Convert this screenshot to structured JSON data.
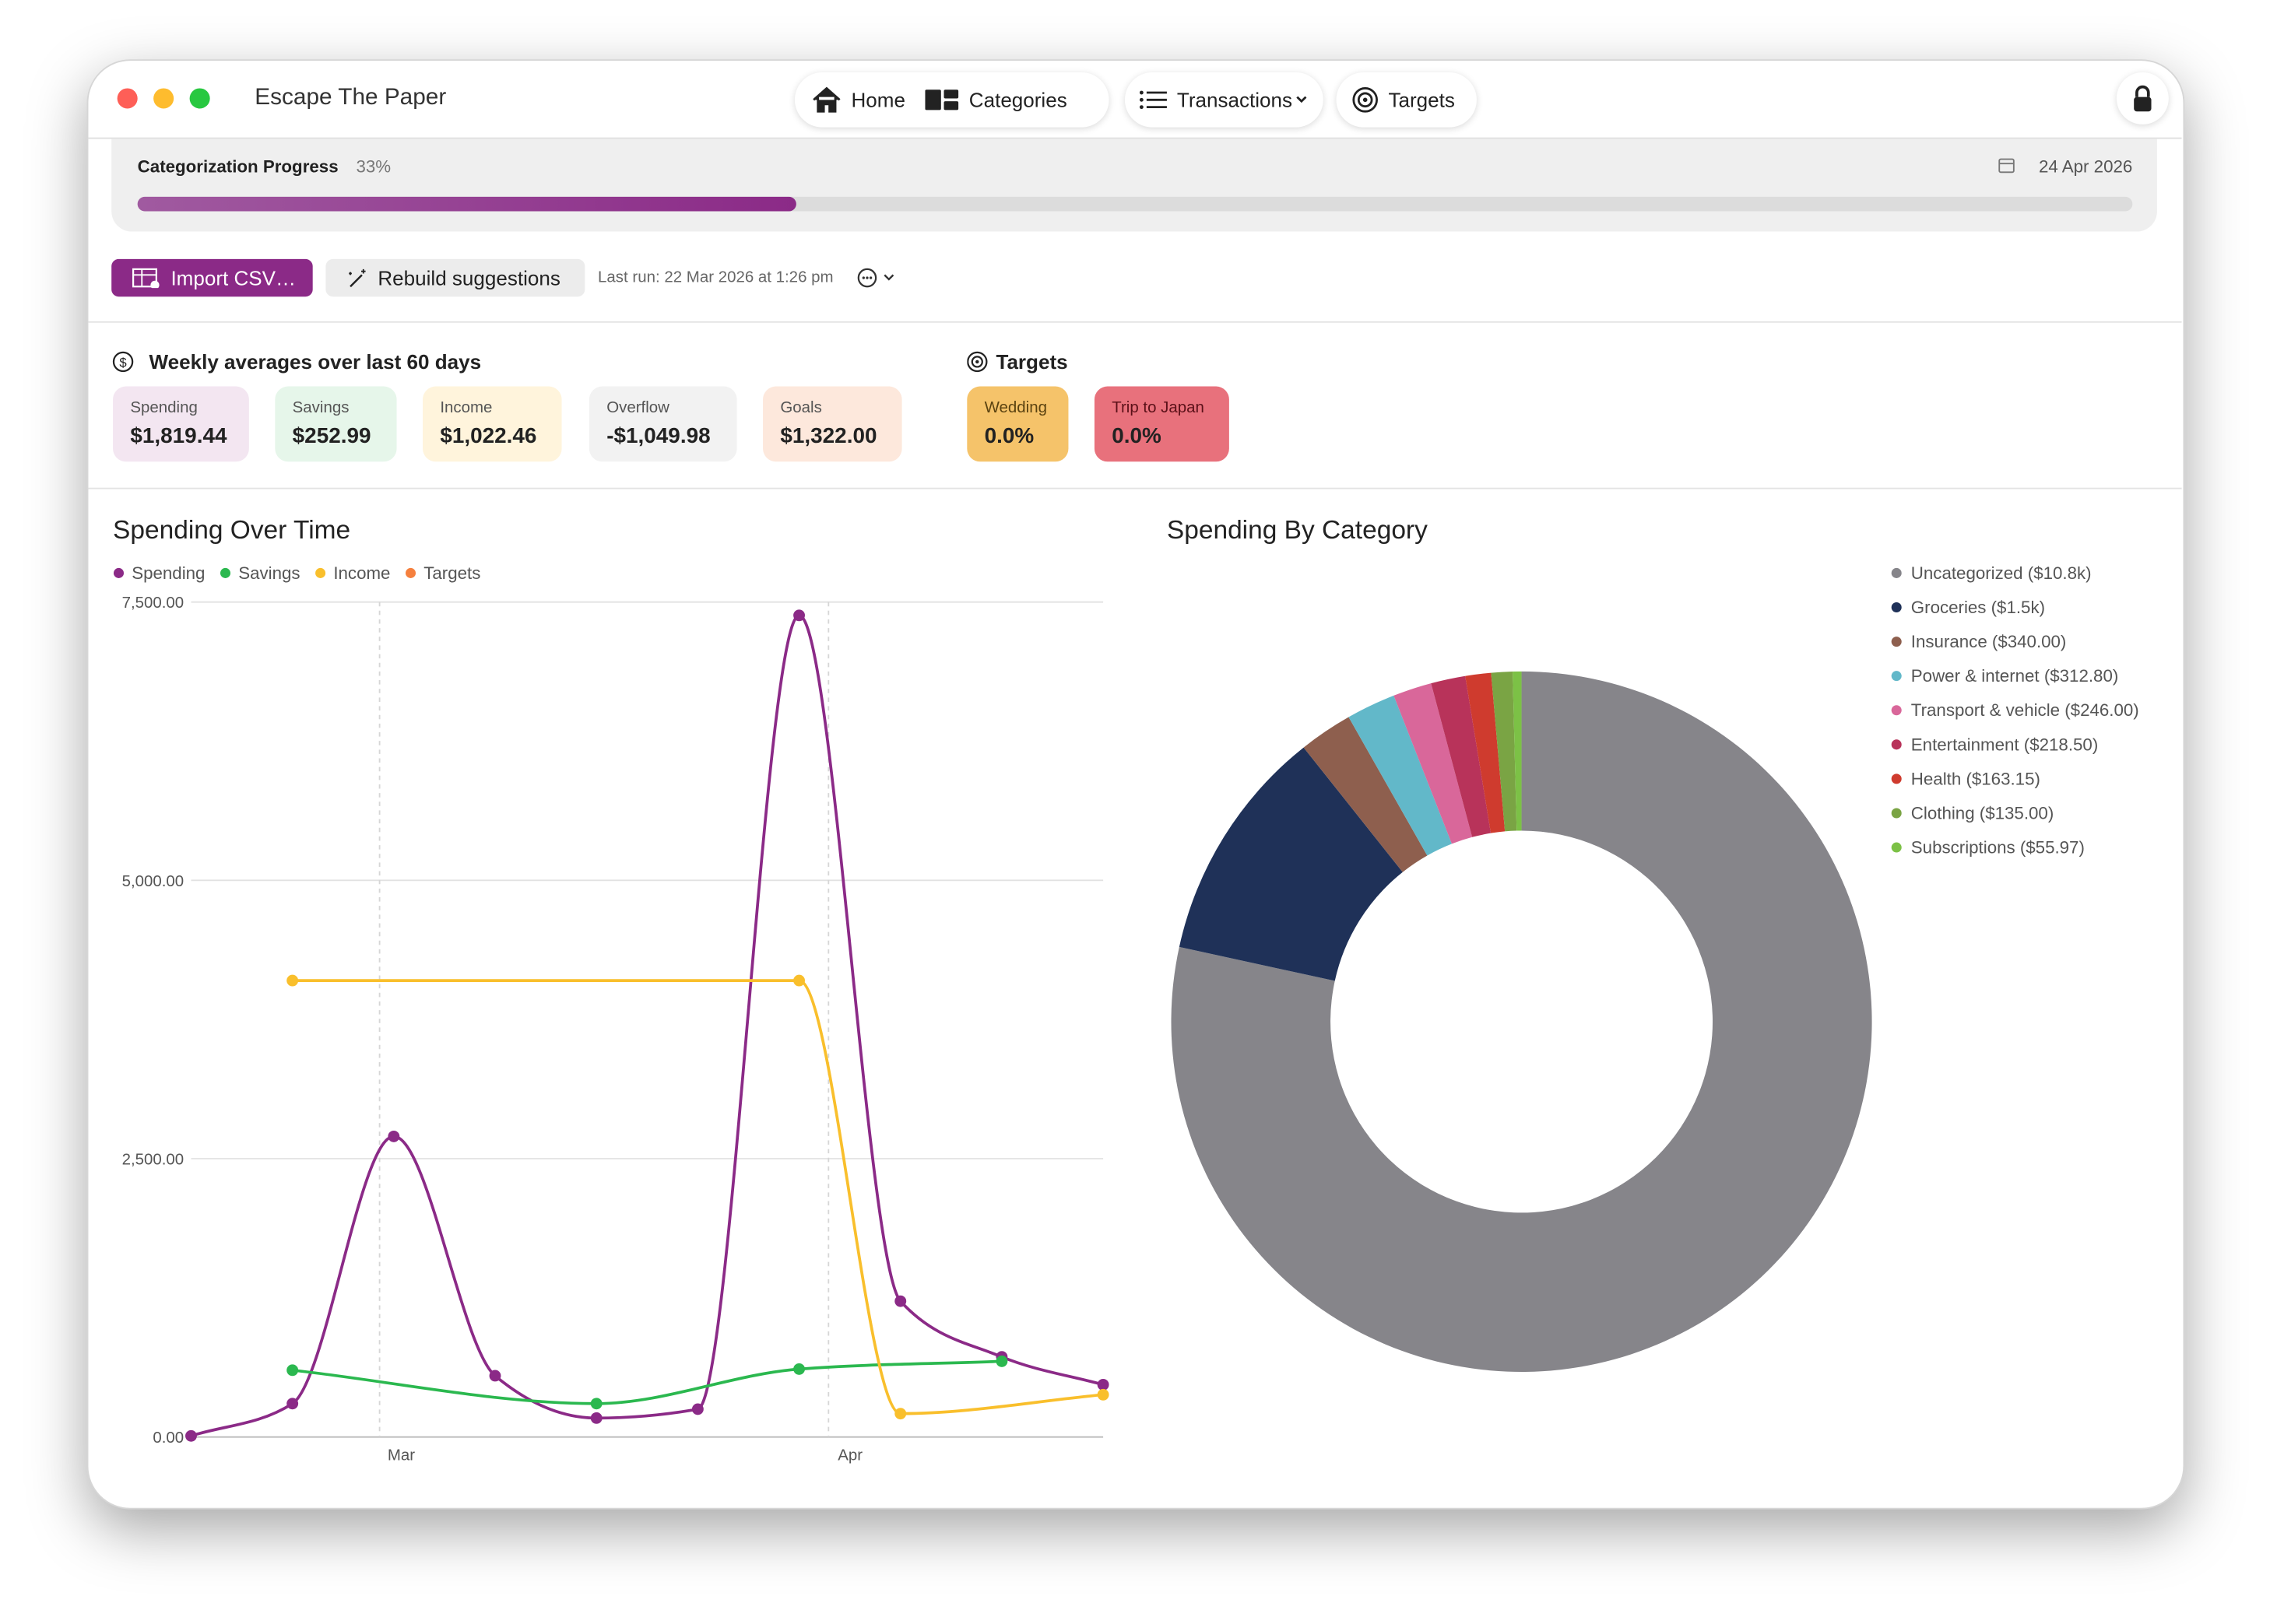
{
  "window_title": "Escape The Paper",
  "nav": [
    "Home",
    "Categories",
    "Transactions",
    "Targets"
  ],
  "progress": {
    "label": "Categorization Progress",
    "percent": 33,
    "percent_label": "33%",
    "date": "24 Apr 2026"
  },
  "actions": {
    "import": "Import CSV…",
    "rebuild": "Rebuild suggestions",
    "last_run": "Last run: 22 Mar 2026 at 1:26 pm"
  },
  "weekly": {
    "title": "Weekly averages over last 60 days",
    "cards": [
      {
        "label": "Spending",
        "value": "$1,819.44"
      },
      {
        "label": "Savings",
        "value": "$252.99"
      },
      {
        "label": "Income",
        "value": "$1,022.46"
      },
      {
        "label": "Overflow",
        "value": "-$1,049.98"
      },
      {
        "label": "Goals",
        "value": "$1,322.00"
      }
    ]
  },
  "targets": {
    "title": "Targets",
    "cards": [
      {
        "label": "Wedding",
        "value": "0.0%"
      },
      {
        "label": "Trip to Japan",
        "value": "0.0%"
      }
    ]
  },
  "chart_data": [
    {
      "type": "line",
      "title": "Spending Over Time",
      "categories": [
        null,
        null,
        null,
        null,
        null,
        null,
        null,
        null,
        null,
        null
      ],
      "xticks": [
        {
          "value": 1.86,
          "label": "Mar"
        },
        {
          "value": 6.29,
          "label": "Apr"
        }
      ],
      "ylim": [
        0,
        7500
      ],
      "yticks": [
        {
          "value": 0,
          "label": "0.00"
        },
        {
          "value": 2500,
          "label": "2,500.00"
        },
        {
          "value": 5000,
          "label": "5,000.00"
        },
        {
          "value": 7500,
          "label": "7,500.00"
        }
      ],
      "grid": true,
      "series": [
        {
          "name": "Spending",
          "color": "#8b2a87",
          "values": [
            10,
            300,
            2700,
            550,
            170,
            250,
            7380,
            1220,
            720,
            470
          ]
        },
        {
          "name": "Savings",
          "color": "#2bb84f",
          "values": [
            null,
            600,
            null,
            null,
            300,
            null,
            610,
            null,
            680,
            null
          ]
        },
        {
          "name": "Income",
          "color": "#f9bf2c",
          "values": [
            null,
            4100,
            null,
            null,
            null,
            null,
            4100,
            210,
            null,
            380
          ]
        },
        {
          "name": "Targets",
          "color": "#f5803e",
          "values": [
            null,
            null,
            null,
            null,
            null,
            null,
            null,
            null,
            null,
            null
          ]
        }
      ]
    },
    {
      "type": "pie",
      "title": "Spending By Category",
      "categories": [
        "Uncategorized ($10.8k)",
        "Groceries ($1.5k)",
        "Insurance ($340.00)",
        "Power & internet ($312.80)",
        "Transport & vehicle ($246.00)",
        "Entertainment ($218.50)",
        "Health ($163.15)",
        "Clothing ($135.00)",
        "Subscriptions ($55.97)"
      ],
      "values": [
        10800,
        1500,
        340,
        312.8,
        246,
        218.5,
        163.15,
        135,
        55.97
      ],
      "colors": [
        "#86858a",
        "#1f3158",
        "#8e5f4e",
        "#62b8c9",
        "#d9679a",
        "#b8335a",
        "#cf3b2e",
        "#7aa444",
        "#7cc146"
      ]
    }
  ]
}
